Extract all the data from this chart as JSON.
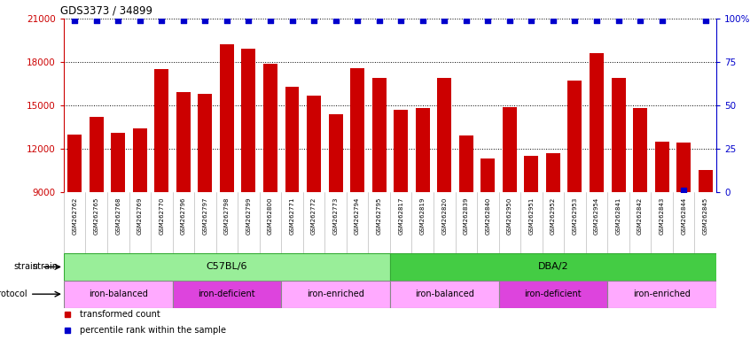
{
  "title": "GDS3373 / 34899",
  "samples": [
    "GSM262762",
    "GSM262765",
    "GSM262768",
    "GSM262769",
    "GSM262770",
    "GSM262796",
    "GSM262797",
    "GSM262798",
    "GSM262799",
    "GSM262800",
    "GSM262771",
    "GSM262772",
    "GSM262773",
    "GSM262794",
    "GSM262795",
    "GSM262817",
    "GSM262819",
    "GSM262820",
    "GSM262839",
    "GSM262840",
    "GSM262950",
    "GSM262951",
    "GSM262952",
    "GSM262953",
    "GSM262954",
    "GSM262841",
    "GSM262842",
    "GSM262843",
    "GSM262844",
    "GSM262845"
  ],
  "bar_values": [
    13000,
    14200,
    13100,
    13400,
    17500,
    15900,
    15800,
    19200,
    18900,
    17900,
    16300,
    15700,
    14400,
    17600,
    16900,
    14700,
    14800,
    16900,
    12900,
    11300,
    14900,
    11500,
    11700,
    16700,
    18600,
    16900,
    14800,
    12500,
    12400,
    10500
  ],
  "percentile_values": [
    99,
    99,
    99,
    99,
    99,
    99,
    99,
    99,
    99,
    99,
    99,
    99,
    99,
    99,
    99,
    99,
    99,
    99,
    99,
    99,
    99,
    99,
    99,
    99,
    99,
    99,
    99,
    99,
    1,
    99
  ],
  "bar_color": "#cc0000",
  "dot_color": "#0000cc",
  "ylim_left": [
    9000,
    21000
  ],
  "ylim_right": [
    0,
    100
  ],
  "yticks_left": [
    9000,
    12000,
    15000,
    18000,
    21000
  ],
  "yticks_right": [
    0,
    25,
    50,
    75,
    100
  ],
  "grid_values": [
    12000,
    15000,
    18000
  ],
  "strain_groups": [
    {
      "label": "C57BL/6",
      "start": 0,
      "end": 14,
      "color": "#99ee99",
      "border": "#33aa33"
    },
    {
      "label": "DBA/2",
      "start": 15,
      "end": 29,
      "color": "#44cc44",
      "border": "#33aa33"
    }
  ],
  "protocol_groups": [
    {
      "label": "iron-balanced",
      "start": 0,
      "end": 4,
      "color": "#ffaaff"
    },
    {
      "label": "iron-deficient",
      "start": 5,
      "end": 9,
      "color": "#dd44dd"
    },
    {
      "label": "iron-enriched",
      "start": 10,
      "end": 14,
      "color": "#ffaaff"
    },
    {
      "label": "iron-balanced",
      "start": 15,
      "end": 19,
      "color": "#ffaaff"
    },
    {
      "label": "iron-deficient",
      "start": 20,
      "end": 24,
      "color": "#dd44dd"
    },
    {
      "label": "iron-enriched",
      "start": 25,
      "end": 29,
      "color": "#ffaaff"
    }
  ],
  "legend_items": [
    {
      "label": "transformed count",
      "color": "#cc0000",
      "marker": "s"
    },
    {
      "label": "percentile rank within the sample",
      "color": "#0000cc",
      "marker": "s"
    }
  ],
  "background_color": "#ffffff",
  "plot_bg_color": "#ffffff",
  "xtick_bg_color": "#dddddd"
}
